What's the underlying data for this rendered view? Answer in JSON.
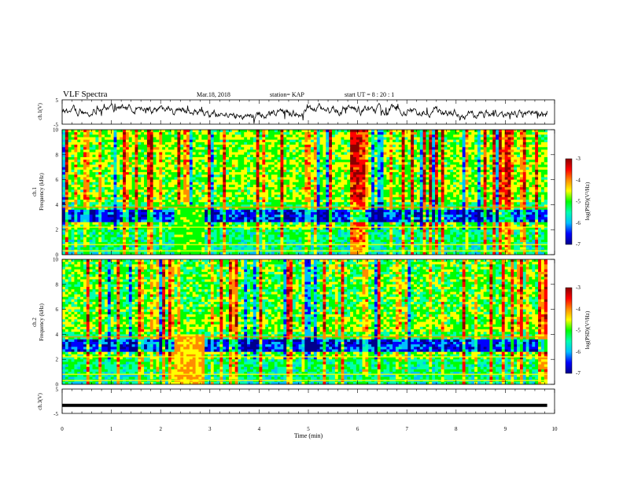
{
  "header": {
    "title": "VLF Spectra",
    "date": "Mar.18, 2018",
    "station": "station= KAP",
    "start": "start  UT =  8 : 20 : 1"
  },
  "chart_data": [
    {
      "type": "line",
      "name": "ch1-waveform",
      "ylabel": "ch.1(V)",
      "ylim": [
        -5,
        5
      ],
      "yticks": [
        "5",
        "-5"
      ],
      "xlim": [
        0,
        10
      ]
    },
    {
      "type": "heatmap",
      "name": "ch1-spectrogram",
      "ylabel": "ch.1\nFrequency  (kHz)",
      "ylabel_top": "ch.1",
      "ylabel_main": "Frequency  (kHz)",
      "ylim": [
        0,
        10
      ],
      "yticks": [
        "0",
        "2",
        "4",
        "6",
        "8",
        "10"
      ],
      "xlim": [
        0,
        9.85
      ],
      "colorbar": {
        "label": "log(PSD)(V²/Hz)",
        "range": [
          -7,
          -3
        ],
        "ticks": [
          "-3",
          "-4",
          "-5",
          "-6",
          "-7"
        ]
      }
    },
    {
      "type": "heatmap",
      "name": "ch2-spectrogram",
      "ylabel_top": "ch.2",
      "ylabel_main": "Frequency  (kHz)",
      "ylim": [
        0,
        10
      ],
      "yticks": [
        "0",
        "2",
        "4",
        "6",
        "8",
        "10"
      ],
      "xlim": [
        0,
        9.85
      ],
      "colorbar": {
        "label": "log(PSD)(V²/Hz)",
        "range": [
          -7,
          -3
        ],
        "ticks": [
          "-3",
          "-4",
          "-5",
          "-6",
          "-7"
        ]
      }
    },
    {
      "type": "line",
      "name": "ch3-waveform",
      "ylabel": "ch.3(V)",
      "ylim": [
        -5,
        5
      ],
      "yticks": [
        "5",
        "-5"
      ],
      "x": [
        0,
        9.85
      ],
      "y": [
        -1.7,
        -1.7
      ]
    }
  ],
  "xaxis": {
    "label": "Time  (min)",
    "ticks": [
      "0",
      "1",
      "2",
      "3",
      "4",
      "5",
      "6",
      "7",
      "8",
      "9",
      "10"
    ],
    "range": [
      0,
      10
    ]
  },
  "colors": {
    "colormap": [
      "#00008b",
      "#0000ff",
      "#00bfff",
      "#00ffb0",
      "#00ff00",
      "#ffff00",
      "#ff8c00",
      "#ff0000",
      "#8b0000"
    ],
    "waveform": "#000000"
  }
}
